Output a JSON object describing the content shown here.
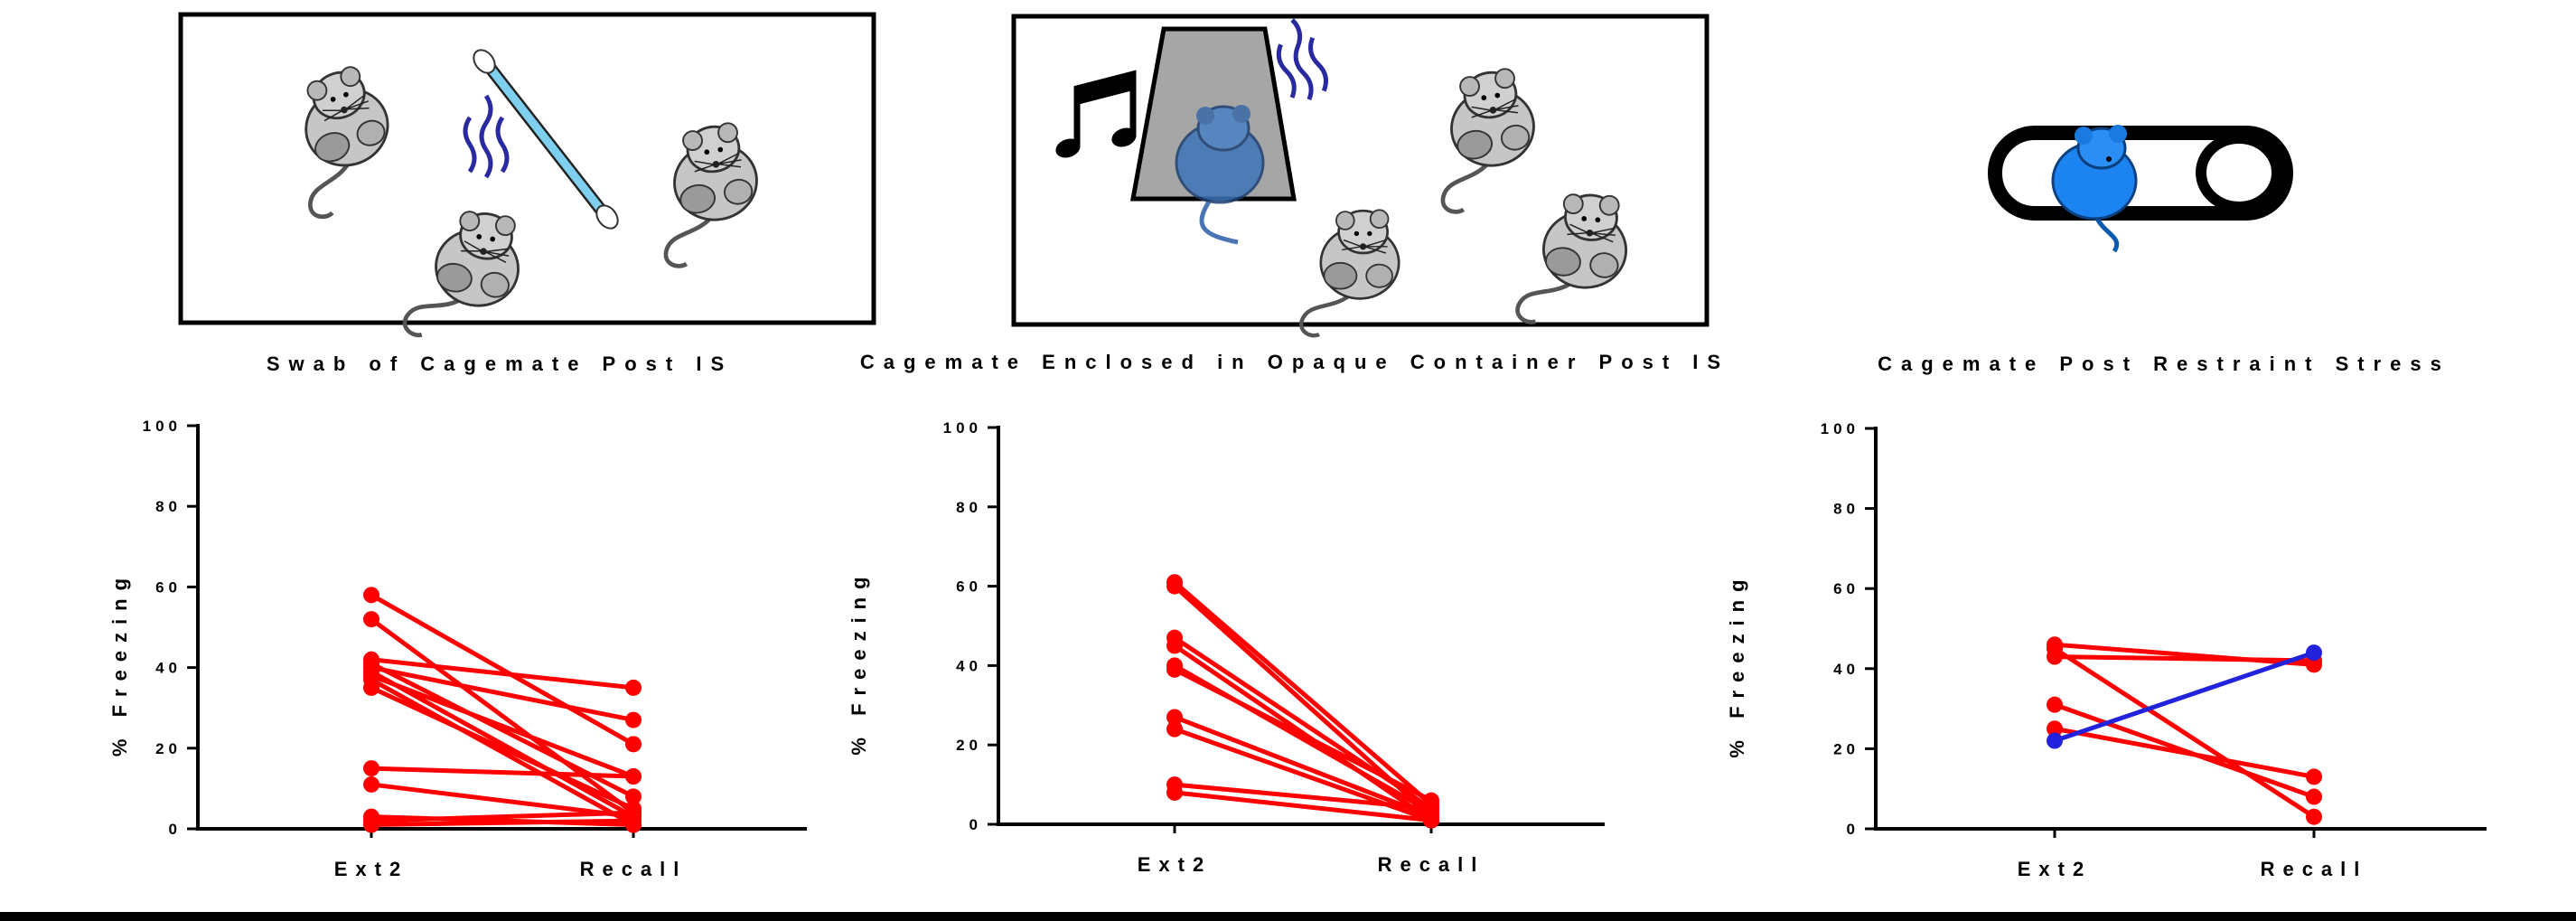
{
  "chart_data": [
    {
      "type": "line",
      "title": "Swab of Cagemate Post IS",
      "ylabel": "% Freezing",
      "categories": [
        "Ext2",
        "Recall"
      ],
      "ylim": [
        0,
        100
      ],
      "yticks": [
        "0",
        "20",
        "40",
        "60",
        "80",
        "100"
      ],
      "grid": false,
      "color": "#ff0000",
      "series": [
        {
          "values": [
            58,
            21
          ]
        },
        {
          "values": [
            52,
            4
          ]
        },
        {
          "values": [
            42,
            35
          ]
        },
        {
          "values": [
            41,
            8
          ]
        },
        {
          "values": [
            40,
            27
          ]
        },
        {
          "values": [
            39,
            3
          ]
        },
        {
          "values": [
            38,
            13
          ]
        },
        {
          "values": [
            37,
            1
          ]
        },
        {
          "values": [
            35,
            5
          ]
        },
        {
          "values": [
            15,
            13
          ]
        },
        {
          "values": [
            11,
            3
          ]
        },
        {
          "values": [
            3,
            1
          ]
        },
        {
          "values": [
            2,
            4
          ]
        },
        {
          "values": [
            1,
            2
          ]
        }
      ]
    },
    {
      "type": "line",
      "title": "Cagemate Enclosed in Opaque Container Post IS",
      "ylabel": "% Freezing",
      "categories": [
        "Ext2",
        "Recall"
      ],
      "ylim": [
        0,
        100
      ],
      "yticks": [
        "0",
        "20",
        "40",
        "60",
        "80",
        "100"
      ],
      "grid": false,
      "color": "#ff0000",
      "series": [
        {
          "values": [
            61,
            5
          ]
        },
        {
          "values": [
            60,
            2
          ]
        },
        {
          "values": [
            47,
            4
          ]
        },
        {
          "values": [
            45,
            1
          ]
        },
        {
          "values": [
            40,
            3
          ]
        },
        {
          "values": [
            39,
            6
          ]
        },
        {
          "values": [
            27,
            2
          ]
        },
        {
          "values": [
            24,
            1
          ]
        },
        {
          "values": [
            10,
            4
          ]
        },
        {
          "values": [
            8,
            1
          ]
        }
      ]
    },
    {
      "type": "line",
      "title": "Cagemate Post Restraint Stress",
      "ylabel": "% Freezing",
      "categories": [
        "Ext2",
        "Recall"
      ],
      "ylim": [
        0,
        100
      ],
      "yticks": [
        "0",
        "20",
        "40",
        "60",
        "80",
        "100"
      ],
      "grid": false,
      "color": "#ff0000",
      "highlight_color": "#2222dd",
      "series": [
        {
          "values": [
            46,
            41
          ]
        },
        {
          "values": [
            43,
            42
          ]
        },
        {
          "values": [
            31,
            8
          ]
        },
        {
          "values": [
            25,
            13
          ]
        },
        {
          "values": [
            45,
            3
          ]
        },
        {
          "values": [
            22,
            44
          ],
          "highlight": true
        }
      ]
    }
  ],
  "illustrations": [
    {
      "description_icons": [
        "mouse-icon",
        "mouse-icon",
        "mouse-icon",
        "cotton-swab-icon",
        "odor-waves-icon"
      ]
    },
    {
      "description_icons": [
        "music-note-icon",
        "opaque-container-icon",
        "mouse-icon",
        "odor-waves-icon",
        "mouse-icon",
        "mouse-icon",
        "mouse-icon"
      ]
    },
    {
      "description_icons": [
        "restraint-tube-icon",
        "mouse-icon"
      ]
    }
  ]
}
